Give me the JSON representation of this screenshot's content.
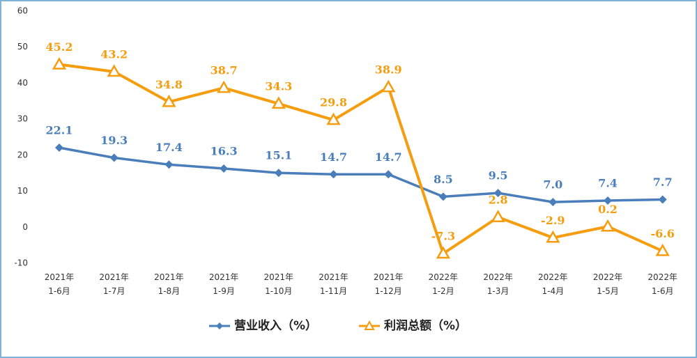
{
  "chart_data": {
    "type": "line",
    "categories": [
      "2021年\n1-6月",
      "2021年\n1-7月",
      "2021年\n1-8月",
      "2021年\n1-9月",
      "2021年\n1-10月",
      "2021年\n1-11月",
      "2021年\n1-12月",
      "2022年\n1-2月",
      "2022年\n1-3月",
      "2022年\n1-4月",
      "2022年\n1-5月",
      "2022年\n1-6月"
    ],
    "series": [
      {
        "name": "营业收入（%）",
        "color": "#4a7ebb",
        "marker": "diamond",
        "values": [
          22.1,
          19.3,
          17.4,
          16.3,
          15.1,
          14.7,
          14.7,
          8.5,
          9.5,
          7.0,
          7.4,
          7.7
        ],
        "value_labels": [
          "22.1",
          "19.3",
          "17.4",
          "16.3",
          "15.1",
          "14.7",
          "14.7",
          "8.5",
          "9.5",
          "7.0",
          "7.4",
          "7.7"
        ]
      },
      {
        "name": "利润总额（%）",
        "color": "#f59d0e",
        "marker": "triangle",
        "values": [
          45.2,
          43.2,
          34.8,
          38.7,
          34.3,
          29.8,
          38.9,
          -7.3,
          2.8,
          -2.9,
          0.2,
          -6.6
        ],
        "value_labels": [
          "45.2",
          "43.2",
          "34.8",
          "38.7",
          "34.3",
          "29.8",
          "38.9",
          "-7.3",
          "2.8",
          "-2.9",
          "0.2",
          "-6.6"
        ]
      }
    ],
    "ylim": [
      -10,
      60
    ],
    "yticks": [
      -10,
      0,
      10,
      20,
      30,
      40,
      50,
      60
    ],
    "grid": false,
    "legend": "bottom"
  }
}
